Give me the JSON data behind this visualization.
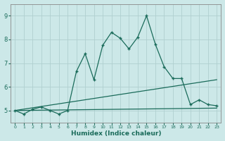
{
  "xlabel": "Humidex (Indice chaleur)",
  "ylabel": "",
  "background_color": "#cce8e8",
  "grid_color": "#b0d0d0",
  "line_color": "#1a6b5a",
  "xlim": [
    -0.5,
    23.5
  ],
  "ylim": [
    4.5,
    9.5
  ],
  "yticks": [
    5,
    6,
    7,
    8,
    9
  ],
  "xticks": [
    0,
    1,
    2,
    3,
    4,
    5,
    6,
    7,
    8,
    9,
    10,
    11,
    12,
    13,
    14,
    15,
    16,
    17,
    18,
    19,
    20,
    21,
    22,
    23
  ],
  "series1_x": [
    0,
    1,
    2,
    3,
    4,
    5,
    6,
    7,
    8,
    9,
    10,
    11,
    12,
    13,
    14,
    15,
    16,
    17,
    18,
    19,
    20,
    21,
    22,
    23
  ],
  "series1_y": [
    5.0,
    4.85,
    5.05,
    5.15,
    5.0,
    4.85,
    5.0,
    6.65,
    7.4,
    6.3,
    7.75,
    8.3,
    8.05,
    7.6,
    8.1,
    9.0,
    7.8,
    6.85,
    6.35,
    6.35,
    5.25,
    5.45,
    5.25,
    5.2
  ],
  "series2_x": [
    0,
    23
  ],
  "series2_y": [
    5.0,
    5.1
  ],
  "series3_x": [
    0,
    23
  ],
  "series3_y": [
    5.0,
    6.3
  ]
}
